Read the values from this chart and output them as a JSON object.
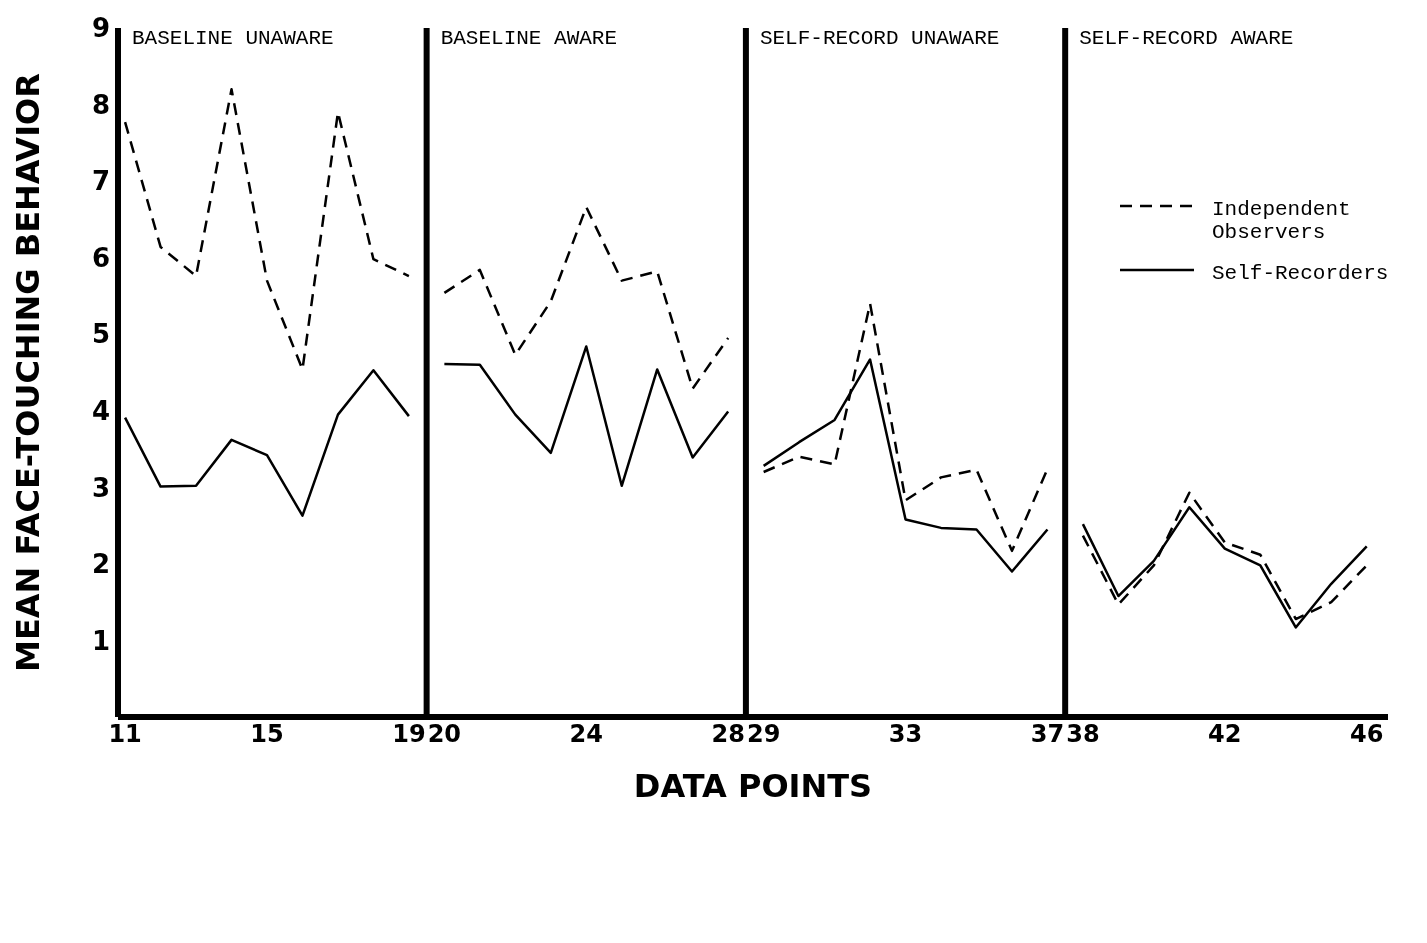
{
  "chart_data": {
    "type": "line",
    "xlabel": "DATA POINTS",
    "ylabel": "MEAN FACE-TOUCHING BEHAVIOR",
    "x": [
      11,
      12,
      13,
      14,
      15,
      16,
      17,
      18,
      19,
      19.5,
      20,
      21,
      22,
      23,
      24,
      25,
      26,
      27,
      28,
      28.5,
      29,
      30,
      31,
      32,
      33,
      34,
      35,
      36,
      37,
      37.5,
      38,
      39,
      40,
      41,
      42,
      43,
      44,
      45,
      46
    ],
    "series": [
      {
        "name": "Independent Observers",
        "color": "#000000",
        "line_style": "dashed",
        "values": [
          7.77,
          6.14,
          5.76,
          8.2,
          5.7,
          4.54,
          7.9,
          5.98,
          5.76,
          null,
          5.54,
          5.84,
          4.73,
          5.43,
          6.66,
          5.7,
          5.82,
          4.29,
          4.95,
          null,
          3.2,
          3.4,
          3.3,
          5.4,
          2.83,
          3.13,
          3.23,
          2.17,
          3.24,
          null,
          2.37,
          1.47,
          1.98,
          2.93,
          2.28,
          2.12,
          1.28,
          1.5,
          1.98
        ]
      },
      {
        "name": "Self-Recorders",
        "color": "#000000",
        "line_style": "solid",
        "values": [
          3.91,
          3.01,
          3.02,
          3.62,
          3.42,
          2.63,
          3.95,
          4.53,
          3.93,
          null,
          4.61,
          4.6,
          3.95,
          3.45,
          4.84,
          3.02,
          4.54,
          3.39,
          3.99,
          null,
          3.28,
          3.59,
          3.88,
          4.67,
          2.58,
          2.47,
          2.45,
          1.9,
          2.45,
          null,
          2.52,
          1.58,
          2.04,
          2.74,
          2.2,
          1.98,
          1.17,
          1.74,
          2.23
        ]
      }
    ],
    "xlim": [
      10.8,
      46.6
    ],
    "xticks": [
      11,
      15,
      19,
      20,
      24,
      28,
      29,
      33,
      37,
      38,
      42,
      46
    ],
    "ylim": [
      0,
      9
    ],
    "yticks": [
      1,
      2,
      3,
      4,
      5,
      6,
      7,
      8,
      9
    ],
    "ref_lines": [
      {
        "axis": "x",
        "value": 19.5,
        "color": "#000000"
      },
      {
        "axis": "x",
        "value": 28.5,
        "color": "#000000"
      },
      {
        "axis": "x",
        "value": 37.5,
        "color": "#000000"
      }
    ],
    "annotations": [
      "BASELINE UNAWARE",
      "BASELINE AWARE",
      "SELF-RECORD UNAWARE",
      "SELF-RECORD AWARE"
    ],
    "grid": false,
    "legend": "top right",
    "marker": "none"
  }
}
